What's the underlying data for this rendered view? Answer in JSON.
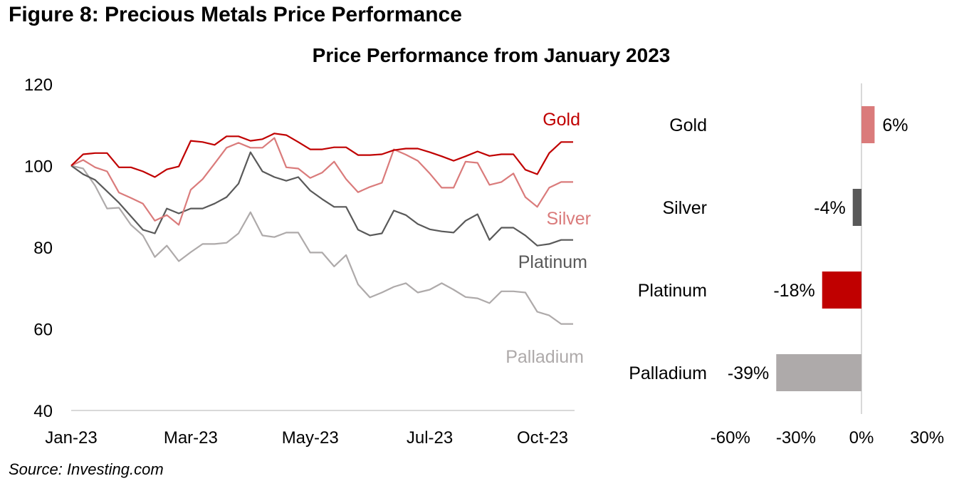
{
  "figure_title": "Figure 8: Precious Metals Price Performance",
  "chart_title": "Price Performance from January 2023",
  "source": "Source: Investing.com",
  "chart_data": [
    {
      "type": "line",
      "title": "Price Performance from January 2023",
      "xlabel": "",
      "ylabel": "",
      "ylim": [
        40,
        120
      ],
      "yticks": [
        "120",
        "100",
        "80",
        "60",
        "40"
      ],
      "ytick_values": [
        120,
        100,
        80,
        60,
        40
      ],
      "xtick_labels": [
        "Jan-23",
        "Mar-23",
        "May-23",
        "Jul-23",
        "Oct-23"
      ],
      "xtick_index": [
        0,
        10,
        20,
        30,
        42
      ],
      "n_points": 43,
      "grid": false,
      "legend": "inline-right",
      "series": [
        {
          "name": "Gold",
          "color": "#C00000",
          "values": [
            100,
            102.8,
            103.1,
            103.1,
            99.6,
            99.6,
            98.6,
            97.2,
            99.1,
            99.8,
            106.1,
            105.8,
            105.1,
            107.2,
            107.2,
            106.1,
            106.5,
            107.9,
            107.5,
            105.8,
            104.0,
            104.0,
            104.5,
            104.5,
            102.6,
            102.6,
            102.8,
            103.8,
            104.2,
            104.2,
            103.3,
            102.3,
            101.2,
            102.3,
            103.5,
            102.4,
            102.8,
            102.8,
            99.0,
            97.9,
            103.1,
            105.8,
            105.8
          ]
        },
        {
          "name": "Silver",
          "color": "#DA7B7B",
          "values": [
            100,
            101.4,
            99.6,
            98.6,
            93.4,
            92.1,
            90.7,
            86.5,
            87.9,
            85.5,
            94.1,
            96.7,
            100.5,
            104.4,
            105.6,
            104.4,
            104.4,
            106.8,
            99.6,
            99.3,
            97.0,
            98.3,
            101.0,
            96.7,
            93.5,
            94.8,
            95.8,
            104.0,
            102.7,
            101.2,
            98.1,
            94.6,
            94.6,
            101.0,
            100.7,
            95.3,
            96.0,
            98.1,
            92.3,
            89.9,
            94.6,
            96.0,
            96.0
          ]
        },
        {
          "name": "Platinum",
          "color": "#595959",
          "values": [
            100,
            97.9,
            96.5,
            93.7,
            90.9,
            87.6,
            84.3,
            83.4,
            89.5,
            88.3,
            89.5,
            89.5,
            90.7,
            92.3,
            95.6,
            103.3,
            98.6,
            97.2,
            96.3,
            97.2,
            93.9,
            91.8,
            89.9,
            89.9,
            84.3,
            82.9,
            83.4,
            89.0,
            87.9,
            85.7,
            84.4,
            83.9,
            83.6,
            86.5,
            88.1,
            81.8,
            84.8,
            84.8,
            82.9,
            80.4,
            80.8,
            81.8,
            81.8
          ]
        },
        {
          "name": "Palladium",
          "color": "#AEAAAA",
          "values": [
            100,
            99.3,
            95.1,
            89.5,
            89.7,
            85.5,
            82.9,
            77.6,
            80.4,
            76.6,
            78.8,
            80.8,
            80.8,
            81.1,
            83.4,
            88.6,
            82.9,
            82.5,
            83.6,
            83.6,
            78.7,
            78.7,
            75.3,
            78.1,
            70.9,
            67.7,
            68.9,
            70.3,
            71.2,
            68.9,
            69.6,
            71.2,
            69.6,
            67.8,
            67.5,
            66.3,
            69.2,
            69.2,
            68.9,
            64.2,
            63.3,
            61.2,
            61.2
          ]
        }
      ]
    },
    {
      "type": "bar",
      "orientation": "horizontal",
      "categories": [
        "Gold",
        "Silver",
        "Platinum",
        "Palladium"
      ],
      "values": [
        6,
        -4,
        -18,
        -39
      ],
      "value_labels": [
        "6%",
        "-4%",
        "-18%",
        "-39%"
      ],
      "colors": [
        "#DA7B7B",
        "#595959",
        "#C00000",
        "#AEAAAA"
      ],
      "xlim": [
        -60,
        30
      ],
      "xticks": [
        "-60%",
        "-30%",
        "0%",
        "30%"
      ],
      "xtick_values": [
        -60,
        -30,
        0,
        30
      ],
      "xlabel": "",
      "ylabel": "",
      "grid": false
    }
  ]
}
